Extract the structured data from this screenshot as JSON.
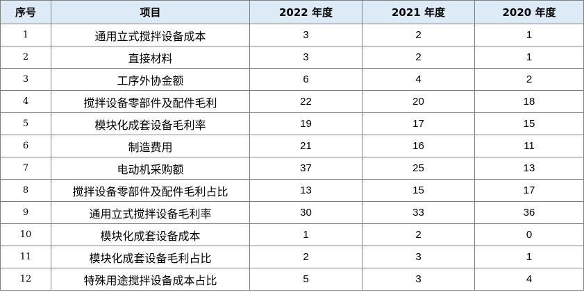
{
  "table": {
    "headers": [
      "序号",
      "项目",
      "2022 年度",
      "2021 年度",
      "2020 年度"
    ],
    "rows": [
      [
        "1",
        "通用立式搅拌设备成本",
        "3",
        "2",
        "1"
      ],
      [
        "2",
        "直接材料",
        "3",
        "2",
        "1"
      ],
      [
        "3",
        "工序外协金额",
        "6",
        "4",
        "2"
      ],
      [
        "4",
        "搅拌设备零部件及配件毛利",
        "22",
        "20",
        "18"
      ],
      [
        "5",
        "模块化成套设备毛利率",
        "19",
        "17",
        "15"
      ],
      [
        "6",
        "制造费用",
        "21",
        "16",
        "11"
      ],
      [
        "7",
        "电动机采购额",
        "37",
        "25",
        "13"
      ],
      [
        "8",
        "搅拌设备零部件及配件毛利占比",
        "13",
        "15",
        "17"
      ],
      [
        "9",
        "通用立式搅拌设备毛利率",
        "30",
        "33",
        "36"
      ],
      [
        "10",
        "模块化成套设备成本",
        "1",
        "2",
        "0"
      ],
      [
        "11",
        "模块化成套设备毛利占比",
        "2",
        "3",
        "1"
      ],
      [
        "12",
        "特殊用途搅拌设备成本占比",
        "5",
        "3",
        "4"
      ]
    ]
  },
  "colors": {
    "header_background": "#ddebf7",
    "border": "#7f7f7f",
    "text": "#000000"
  }
}
